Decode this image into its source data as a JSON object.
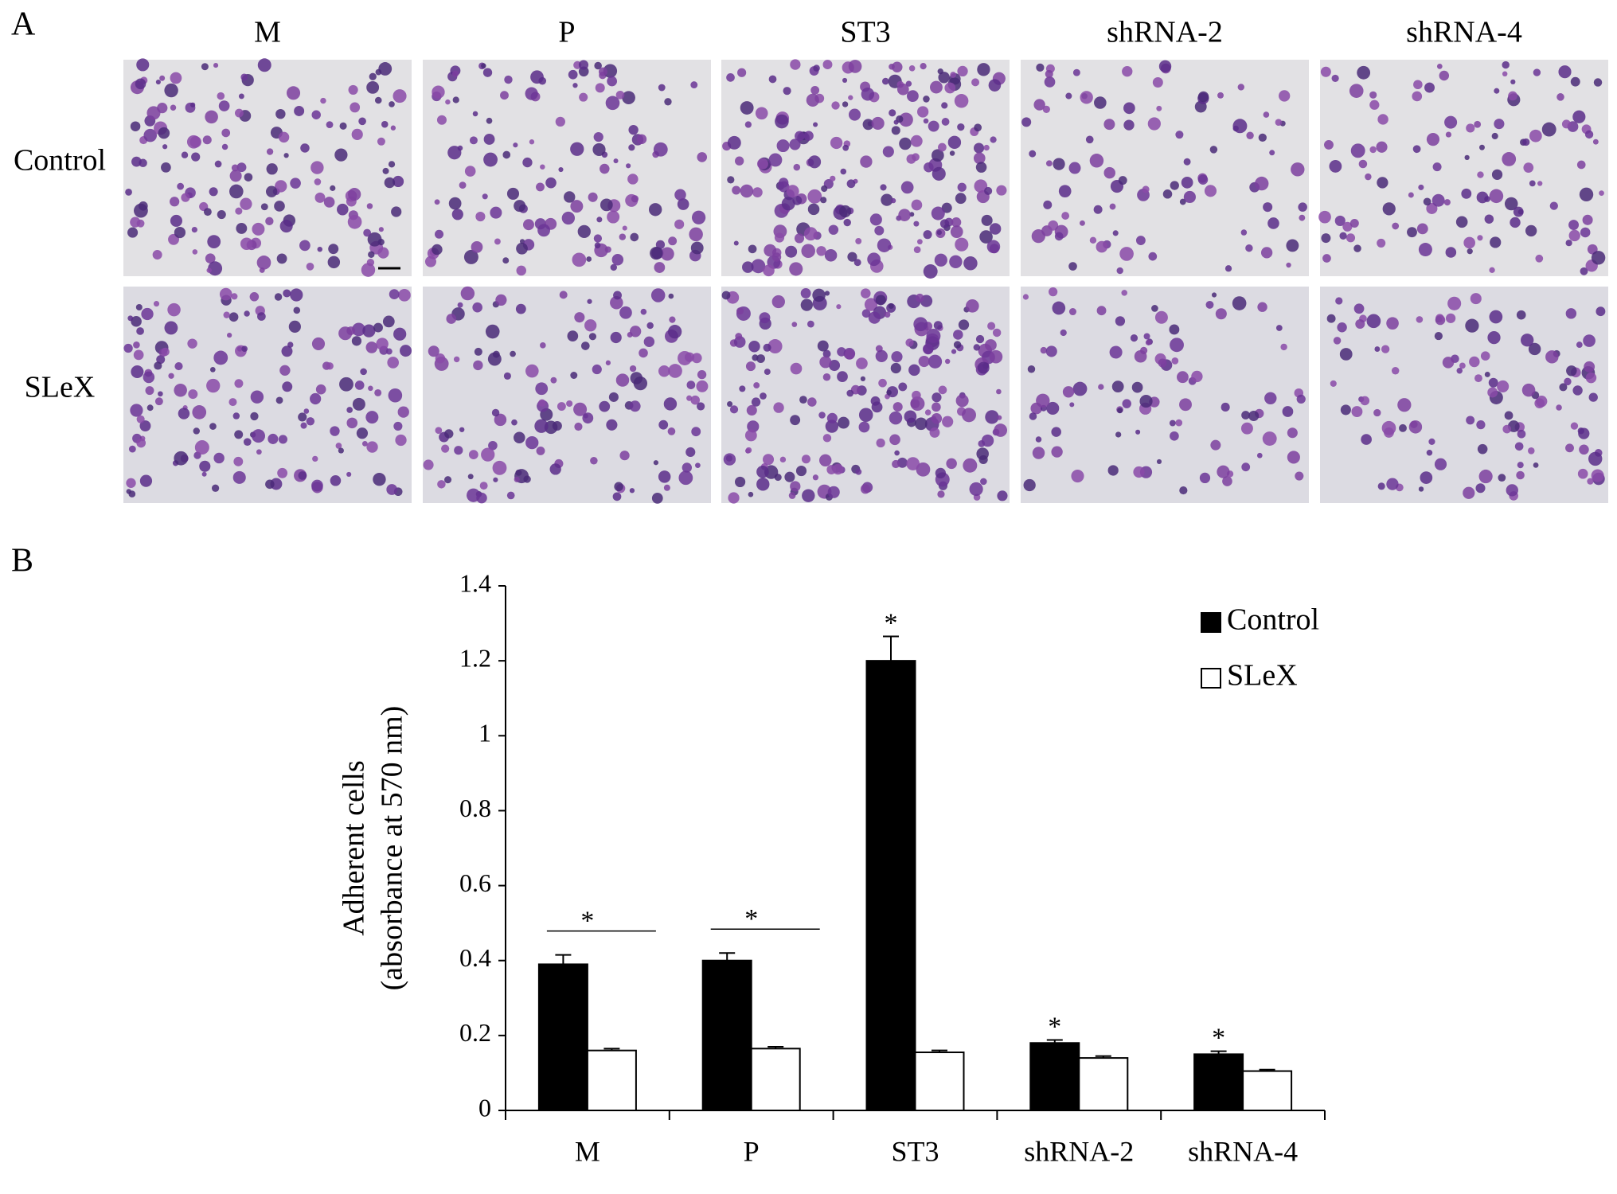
{
  "panel_a": {
    "label": "A",
    "columns": [
      "M",
      "P",
      "ST3",
      "shRNA-2",
      "shRNA-4"
    ],
    "rows": [
      "Control",
      "SLeX"
    ]
  },
  "panel_b_label": "B",
  "chart_data": {
    "type": "bar",
    "y_label": [
      "Adherent cells",
      "(absorbance at 570 nm)"
    ],
    "categories": [
      "M",
      "P",
      "ST3",
      "shRNA-2",
      "shRNA-4"
    ],
    "series": [
      {
        "name": "Control",
        "color": "#000000",
        "values": [
          0.39,
          0.4,
          1.2,
          0.18,
          0.15
        ],
        "errors": [
          0.025,
          0.02,
          0.065,
          0.008,
          0.008
        ]
      },
      {
        "name": "SLeX",
        "color": "#ffffff",
        "values": [
          0.16,
          0.165,
          0.155,
          0.14,
          0.105
        ],
        "errors": [
          0.005,
          0.005,
          0.005,
          0.005,
          0.004
        ]
      }
    ],
    "ylim": [
      0,
      1.4
    ],
    "yticks": [
      0,
      0.2,
      0.4,
      0.6,
      0.8,
      1,
      1.2,
      1.4
    ],
    "legend": "top-right",
    "annotations": [
      {
        "text": "*",
        "category": 0,
        "bracket": true
      },
      {
        "text": "*",
        "category": 1,
        "bracket": true
      },
      {
        "text": "*",
        "category": 2,
        "bracket": false
      },
      {
        "text": "*",
        "category": 3,
        "bracket": false
      },
      {
        "text": "*",
        "category": 4,
        "bracket": false
      }
    ]
  }
}
